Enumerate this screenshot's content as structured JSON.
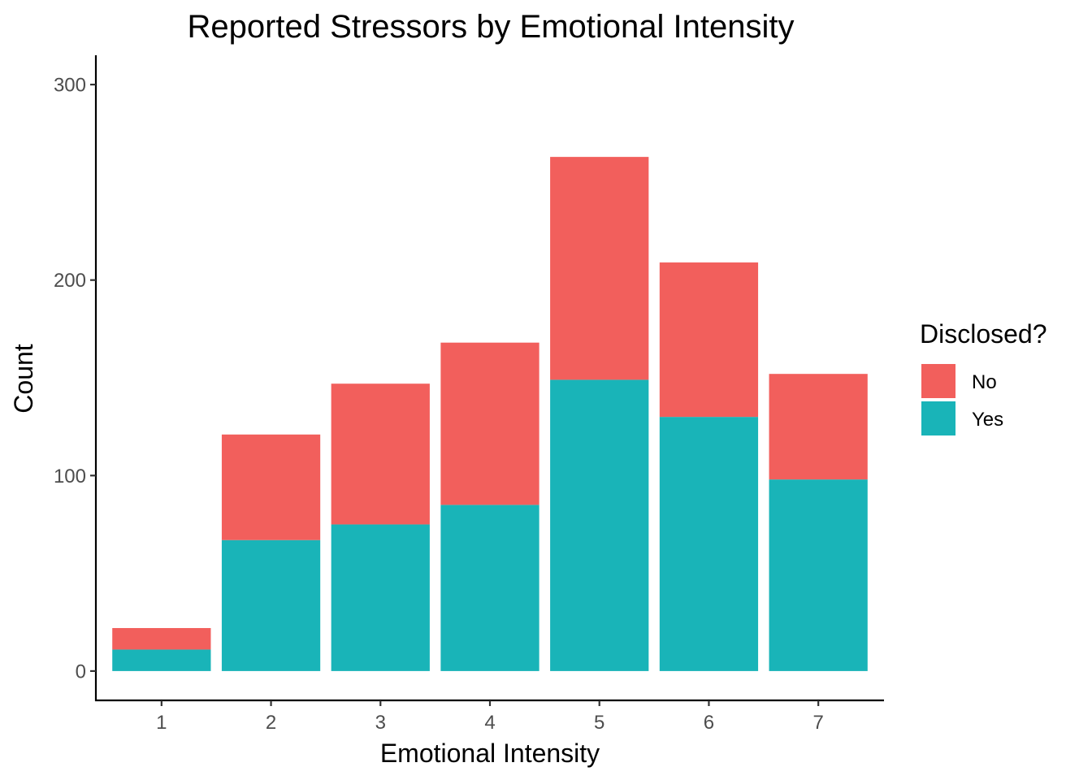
{
  "chart_data": {
    "type": "bar",
    "stacked": true,
    "title": "Reported Stressors by Emotional Intensity",
    "xlabel": "Emotional Intensity",
    "ylabel": "Count",
    "categories": [
      "1",
      "2",
      "3",
      "4",
      "5",
      "6",
      "7"
    ],
    "series": [
      {
        "name": "Yes",
        "values": [
          11,
          67,
          75,
          85,
          149,
          130,
          98
        ],
        "color": "#19b4b8"
      },
      {
        "name": "No",
        "values": [
          11,
          54,
          72,
          83,
          114,
          79,
          54
        ],
        "color": "#f25f5c"
      }
    ],
    "ylim": [
      -15,
      315
    ],
    "yticks": [
      0,
      100,
      200,
      300
    ],
    "grid": false,
    "legend": {
      "title": "Disclosed?",
      "placement": "right",
      "entries": [
        "No",
        "Yes"
      ]
    }
  }
}
